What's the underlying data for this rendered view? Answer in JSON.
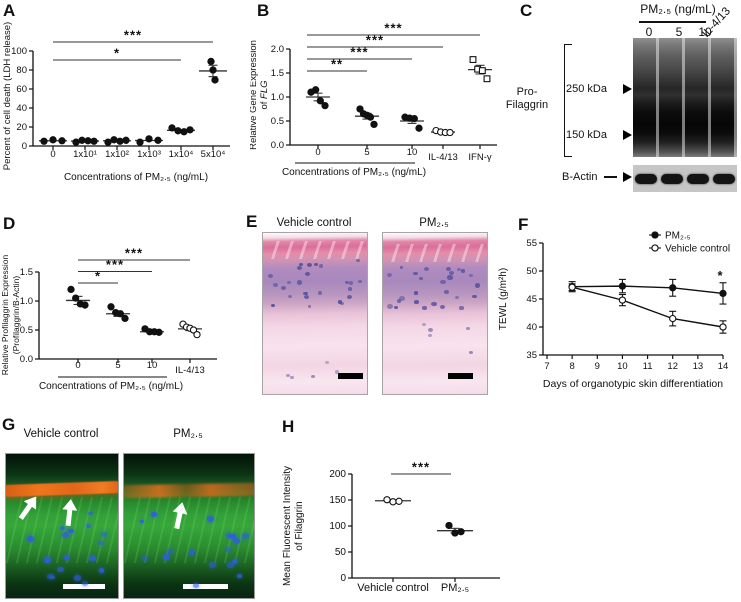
{
  "panels": {
    "A": {
      "letter": "A"
    },
    "B": {
      "letter": "B"
    },
    "C": {
      "letter": "C",
      "header": "PM₂.₅ (ng/mL)",
      "lanes": [
        "0",
        "5",
        "10"
      ],
      "lane_rotated": "IL-4/13",
      "protein_label_line1": "Pro-",
      "protein_label_line2": "Filaggrin",
      "marker_250": "250 kDa",
      "marker_150": "150 kDa",
      "loading_control": "B-Actin"
    },
    "D": {
      "letter": "D"
    },
    "E": {
      "letter": "E",
      "left_label": "Vehicle control",
      "right_label": "PM₂.₅"
    },
    "F": {
      "letter": "F"
    },
    "G": {
      "letter": "G",
      "left_label": "Vehicle control",
      "right_label": "PM₂.₅"
    },
    "H": {
      "letter": "H"
    }
  },
  "colors": {
    "he_pink": "#d96f9b",
    "he_purple": "#a888bd",
    "if_green": "#32a038",
    "if_orange": "#e8701e",
    "nuclei_blue": "#2f5ce6",
    "nuclei_purple": "#564f9e",
    "marker_black": "#111111"
  },
  "chart_data": [
    {
      "id": "A",
      "type": "scatter",
      "ylabel": "Percent of cell death (LDH release)",
      "xlabel": "Concentrations of PM₂.₅ (ng/mL)",
      "ylim": [
        0,
        100
      ],
      "yticks": [
        {
          "v": 0,
          "t": "0"
        },
        {
          "v": 20,
          "t": "20"
        },
        {
          "v": 40,
          "t": "40"
        },
        {
          "v": 60,
          "t": "60"
        },
        {
          "v": 80,
          "t": "80"
        },
        {
          "v": 100,
          "t": "100"
        }
      ],
      "groups": [
        {
          "label": "0",
          "marker": "filled-circle",
          "points": [
            5,
            6.5,
            5.5
          ],
          "mean": 5.5
        },
        {
          "label": "1x10¹",
          "marker": "filled-circle",
          "points": [
            4,
            6,
            5.5,
            5
          ],
          "mean": 5.2
        },
        {
          "label": "1x10²",
          "marker": "filled-circle",
          "points": [
            4,
            6.5,
            5,
            6
          ],
          "mean": 5.5
        },
        {
          "label": "1x10³",
          "marker": "filled-circle",
          "points": [
            4,
            7.5,
            6
          ],
          "mean": 5.8
        },
        {
          "label": "1x10⁴",
          "marker": "filled-circle",
          "points": [
            19,
            16,
            15,
            17
          ],
          "mean": 16.5
        },
        {
          "label": "5x10⁴",
          "marker": "filled-circle",
          "points": [
            89,
            80,
            69.5
          ],
          "mean": 79,
          "sem": 6,
          "jit": 2
        }
      ],
      "significance": [
        {
          "from": 0,
          "to": 5,
          "label": "***"
        },
        {
          "from": 0,
          "to": 4,
          "label": "*"
        }
      ]
    },
    {
      "id": "B",
      "type": "scatter",
      "ylabel": "Relative Gene Expression\nof FLG",
      "ylabel_italic": "FLG",
      "bracket_label": "Concentrations of PM₂.₅ (ng/mL)",
      "ylim": [
        0,
        2
      ],
      "yticks": [
        {
          "v": 0,
          "t": "0.0"
        },
        {
          "v": 0.5,
          "t": "0.5"
        },
        {
          "v": 1,
          "t": "1.0"
        },
        {
          "v": 1.5,
          "t": "1.5"
        },
        {
          "v": 2,
          "t": "2.0"
        }
      ],
      "groups": [
        {
          "label": "0",
          "marker": "filled-circle",
          "points": [
            1.1,
            1.15,
            0.92,
            0.82
          ],
          "mean": 1.0,
          "sem": 0.08
        },
        {
          "label": "5",
          "marker": "filled-circle",
          "points": [
            0.75,
            0.65,
            0.62,
            0.58,
            0.43
          ],
          "mean": 0.6,
          "sem": 0.06
        },
        {
          "label": "10",
          "marker": "filled-circle",
          "points": [
            0.58,
            0.56,
            0.55,
            0.35
          ],
          "mean": 0.5,
          "sem": 0.05
        },
        {
          "label": "IL-4/13",
          "marker": "open-circle",
          "points": [
            0.3,
            0.27,
            0.26,
            0.26
          ],
          "mean": 0.27,
          "sem": 0.015
        },
        {
          "label": "IFN-γ",
          "marker": "open-square",
          "points": [
            1.78,
            1.58,
            1.55,
            1.38
          ],
          "mean": 1.57,
          "sem": 0.09
        }
      ],
      "significance": [
        {
          "from": 0,
          "to": 4,
          "label": "***"
        },
        {
          "from": 0,
          "to": 3,
          "label": "***"
        },
        {
          "from": 0,
          "to": 2,
          "label": "***"
        },
        {
          "from": 0,
          "to": 1,
          "label": "**"
        }
      ]
    },
    {
      "id": "D",
      "type": "scatter",
      "ylabel": "Relative Profilaggrin Expression\n(Profilaggrin/B-Actin)",
      "bracket_label": "Concentrations of PM₂.₅ (ng/mL)",
      "ylim": [
        0,
        1.5
      ],
      "yticks": [
        {
          "v": 0,
          "t": "0.0"
        },
        {
          "v": 0.5,
          "t": "0.5"
        },
        {
          "v": 1,
          "t": "1.0"
        },
        {
          "v": 1.5,
          "t": "1.5"
        }
      ],
      "groups": [
        {
          "label": "0",
          "marker": "filled-circle",
          "points": [
            1.2,
            1.05,
            0.95,
            0.93
          ],
          "mean": 1.01,
          "sem": 0.07
        },
        {
          "label": "5",
          "marker": "filled-circle",
          "points": [
            0.9,
            0.8,
            0.78,
            0.7
          ],
          "mean": 0.78,
          "sem": 0.045
        },
        {
          "label": "10",
          "marker": "filled-circle",
          "points": [
            0.52,
            0.47,
            0.47,
            0.46
          ],
          "mean": 0.47,
          "sem": 0.02
        },
        {
          "label": "IL-4/13",
          "marker": "open-circle",
          "points": [
            0.6,
            0.55,
            0.53,
            0.5,
            0.42
          ],
          "mean": 0.52,
          "sem": 0.03
        }
      ],
      "significance": [
        {
          "from": 0,
          "to": 3,
          "label": "***"
        },
        {
          "from": 0,
          "to": 2,
          "label": "***"
        },
        {
          "from": 0,
          "to": 1,
          "label": "*"
        }
      ]
    },
    {
      "id": "F",
      "type": "line",
      "ylabel": "TEWL (g/m²h)",
      "xlabel": "Days of organotypic skin differentiation",
      "xlim": [
        7,
        14
      ],
      "ylim": [
        35,
        55
      ],
      "xticks": [
        {
          "v": 7,
          "t": "7"
        },
        {
          "v": 8,
          "t": "8"
        },
        {
          "v": 9,
          "t": "9"
        },
        {
          "v": 10,
          "t": "10"
        },
        {
          "v": 11,
          "t": "11"
        },
        {
          "v": 12,
          "t": "12"
        },
        {
          "v": 13,
          "t": "13"
        },
        {
          "v": 14,
          "t": "14"
        }
      ],
      "yticks": [
        {
          "v": 35,
          "t": "35"
        },
        {
          "v": 40,
          "t": "40"
        },
        {
          "v": 45,
          "t": "45"
        },
        {
          "v": 50,
          "t": "50"
        },
        {
          "v": 55,
          "t": "55"
        }
      ],
      "series": [
        {
          "name": "PM₂.₅",
          "marker": "filled-circle",
          "x": [
            8,
            10,
            12,
            14
          ],
          "y": [
            47.2,
            47.3,
            47.0,
            46.0
          ],
          "err": [
            0.9,
            1.2,
            1.5,
            1.9
          ]
        },
        {
          "name": "Vehicle control",
          "marker": "open-circle",
          "x": [
            8,
            10,
            12,
            14
          ],
          "y": [
            47.1,
            44.8,
            41.5,
            40.0
          ],
          "err": [
            0.6,
            1.0,
            1.3,
            1.1
          ]
        }
      ],
      "legend_position": "top-right",
      "annotation": "*"
    },
    {
      "id": "H",
      "type": "scatter",
      "ylabel": "Mean Fluorescent Intensity\nof Filaggrin",
      "ylim": [
        0,
        200
      ],
      "yticks": [
        {
          "v": 0,
          "t": "0"
        },
        {
          "v": 50,
          "t": "50"
        },
        {
          "v": 100,
          "t": "100"
        },
        {
          "v": 150,
          "t": "150"
        },
        {
          "v": 200,
          "t": "200"
        }
      ],
      "groups": [
        {
          "label": "Vehicle control",
          "marker": "open-circle",
          "points": [
            150.5,
            146.5,
            147.5
          ],
          "mean": 148.5,
          "sem": 1.5
        },
        {
          "label": "PM₂.₅",
          "marker": "filled-circle",
          "points": [
            101,
            86.5,
            89
          ],
          "mean": 91,
          "sem": 4.5
        }
      ],
      "significance": [
        {
          "from": 0,
          "to": 1,
          "label": "***"
        }
      ]
    }
  ]
}
